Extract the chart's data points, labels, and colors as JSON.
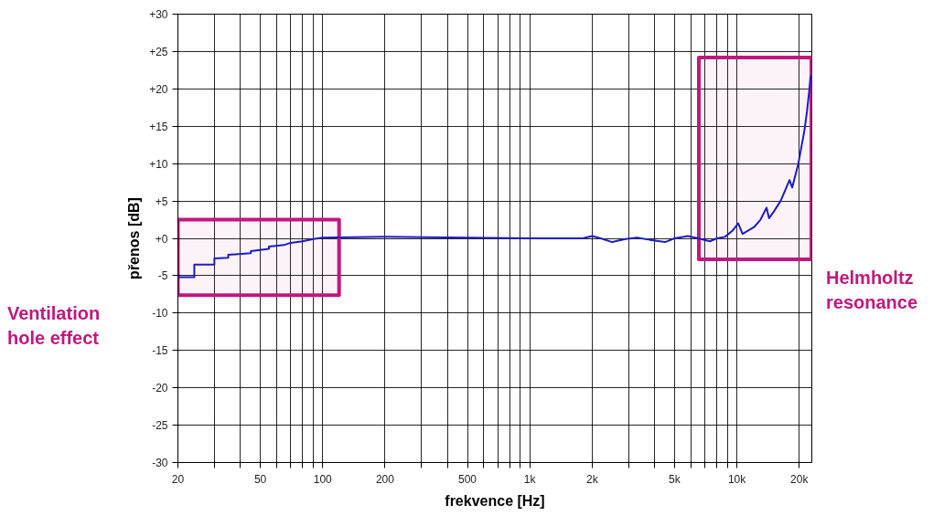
{
  "chart_data": {
    "type": "line",
    "xlabel": "frekvence [Hz]",
    "ylabel": "přenos [dB]",
    "log": "x",
    "grid": true,
    "xlim": [
      20,
      23000
    ],
    "ylim": [
      -30,
      30
    ],
    "xticks": [
      20,
      {
        "value": 30,
        "label": null
      },
      {
        "value": 40,
        "label": null
      },
      50,
      {
        "value": 60,
        "label": null
      },
      {
        "value": 70,
        "label": null
      },
      {
        "value": 80,
        "label": null
      },
      {
        "value": 90,
        "label": null
      },
      100,
      200,
      {
        "value": 300,
        "label": null
      },
      {
        "value": 400,
        "label": null
      },
      500,
      {
        "value": 600,
        "label": null
      },
      {
        "value": 700,
        "label": null
      },
      {
        "value": 800,
        "label": null
      },
      {
        "value": 900,
        "label": null
      },
      {
        "value": 1000,
        "label": "1k"
      },
      {
        "value": 2000,
        "label": "2k"
      },
      {
        "value": 3000,
        "label": null
      },
      {
        "value": 4000,
        "label": null
      },
      {
        "value": 5000,
        "label": "5k"
      },
      {
        "value": 6000,
        "label": null
      },
      {
        "value": 7000,
        "label": null
      },
      {
        "value": 8000,
        "label": null
      },
      {
        "value": 9000,
        "label": null
      },
      {
        "value": 10000,
        "label": "10k"
      },
      {
        "value": 20000,
        "label": "20k"
      }
    ],
    "yticks": [
      {
        "value": 30,
        "label": "+30"
      },
      {
        "value": 25,
        "label": "+25"
      },
      {
        "value": 20,
        "label": "+20"
      },
      {
        "value": 15,
        "label": "+15"
      },
      {
        "value": 10,
        "label": "+10"
      },
      {
        "value": 5,
        "label": "+5"
      },
      {
        "value": 0,
        "label": "+0"
      },
      -5,
      -10,
      -15,
      -20,
      -25,
      -30
    ],
    "series": [
      {
        "color": "#1c1cc4",
        "x": [
          20,
          24,
          24,
          30,
          30,
          35,
          35,
          45,
          45,
          55,
          55,
          65,
          70,
          80,
          90,
          100,
          200,
          500,
          1000,
          1800,
          2000,
          2200,
          2500,
          2900,
          3300,
          3800,
          4500,
          5000,
          5800,
          6500,
          7400,
          8000,
          8750,
          9500,
          10150,
          10650,
          12100,
          13000,
          13900,
          14300,
          15000,
          16260,
          17950,
          18500,
          19800,
          21200,
          21800,
          22300,
          22700
        ],
        "values": [
          -5.2,
          -5.2,
          -3.5,
          -3.5,
          -2.7,
          -2.6,
          -2.2,
          -2.0,
          -1.7,
          -1.4,
          -1.1,
          -0.9,
          -0.6,
          -0.4,
          -0.1,
          0.1,
          0.2,
          0.1,
          0.0,
          0.0,
          0.3,
          0.0,
          -0.5,
          -0.1,
          0.1,
          -0.2,
          -0.5,
          0.0,
          0.3,
          0.0,
          -0.4,
          0.0,
          0.2,
          1.0,
          2.0,
          0.6,
          1.5,
          2.5,
          4.1,
          2.7,
          3.5,
          5.0,
          7.8,
          6.8,
          10.0,
          14.5,
          17.0,
          19.5,
          21.8
        ]
      }
    ],
    "bands": [
      {
        "axis": "x",
        "from": 20,
        "to": 120,
        "label": "Ventilation hole effect",
        "color": "#c0187e"
      },
      {
        "axis": "x",
        "from": 6550,
        "to": 22900,
        "label": "Helmholtz resonance",
        "color": "#c0187e"
      }
    ]
  }
}
